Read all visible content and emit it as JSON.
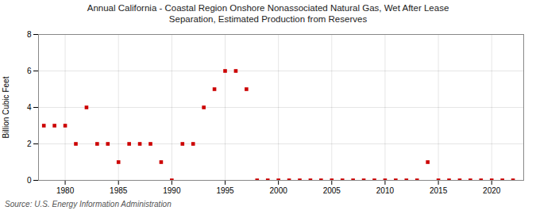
{
  "chart_data": {
    "type": "scatter",
    "title": "Annual California - Coastal Region Onshore Nonassociated Natural Gas, Wet After Lease\nSeparation, Estimated Production from Reserves",
    "ylabel": "Billion Cubic Feet",
    "source": "Source: U.S. Energy Information Administration",
    "x": [
      1978,
      1979,
      1980,
      1981,
      1982,
      1983,
      1984,
      1985,
      1986,
      1987,
      1988,
      1989,
      1990,
      1991,
      1992,
      1993,
      1994,
      1995,
      1996,
      1997,
      1998,
      1999,
      2000,
      2001,
      2002,
      2003,
      2004,
      2005,
      2006,
      2007,
      2008,
      2009,
      2010,
      2011,
      2012,
      2013,
      2014,
      2015,
      2016,
      2017,
      2018,
      2019,
      2020,
      2021,
      2022
    ],
    "values": [
      3.0,
      3.0,
      3.0,
      2.0,
      4.0,
      2.0,
      2.0,
      1.0,
      2.0,
      2.0,
      2.0,
      1.0,
      0.0,
      2.0,
      2.0,
      4.0,
      5.0,
      6.0,
      6.0,
      5.0,
      0.0,
      0.0,
      0.0,
      0.0,
      0.0,
      0.0,
      0.0,
      0.0,
      0.0,
      0.0,
      0.0,
      0.0,
      0.0,
      0.0,
      0.0,
      0.0,
      1.0,
      0.0,
      0.0,
      0.0,
      0.0,
      0.0,
      0.0,
      0.0,
      0.0
    ],
    "color": "#cc0000",
    "marker": "square",
    "xlim": [
      1977.5,
      2023
    ],
    "ylim": [
      0,
      8
    ],
    "xticks": [
      1980,
      1985,
      1990,
      1995,
      2000,
      2005,
      2010,
      2015,
      2020
    ],
    "yticks": [
      0,
      2,
      4,
      6,
      8
    ],
    "grid": true
  }
}
